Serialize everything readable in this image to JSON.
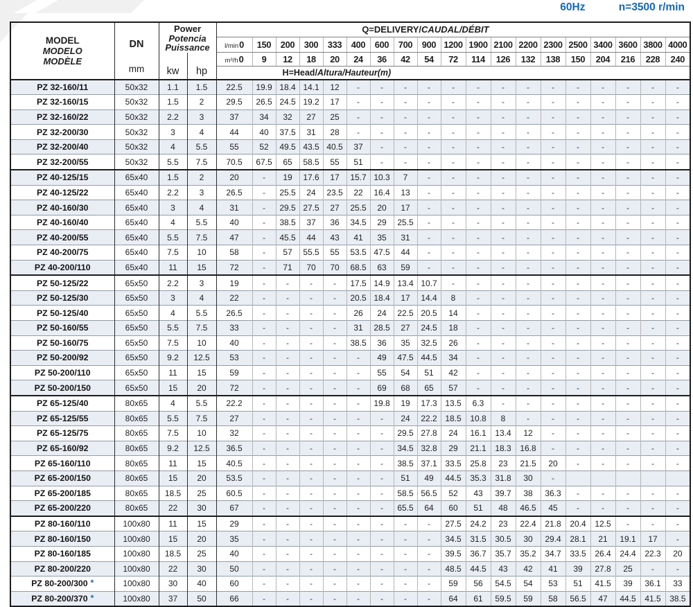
{
  "page": {
    "frequency": "60Hz",
    "speed": "n=3500 r/min",
    "colors": {
      "accent_blue": "#1268b8",
      "row_stripe": "#e9edf4"
    }
  },
  "table": {
    "header": {
      "model_lines": [
        "MODEL",
        "MODELO",
        "MODÈLE"
      ],
      "dn": "DN",
      "dn_unit": "mm",
      "power_lines": [
        "Power",
        "Potencia",
        "Puissance"
      ],
      "kw": "kw",
      "hp": "hp",
      "q_title_main": "Q=DELIVERY/",
      "q_title_italic": "CAUDAL/DÉBIT",
      "lmin_label": "l/min",
      "m3h_label": "m³/h",
      "lmin": [
        "0",
        "150",
        "200",
        "300",
        "333",
        "400",
        "600",
        "700",
        "900",
        "1200",
        "1900",
        "2100",
        "2200",
        "2300",
        "2500",
        "3400",
        "3600",
        "3800",
        "4000"
      ],
      "m3h": [
        "0",
        "9",
        "12",
        "18",
        "20",
        "24",
        "36",
        "42",
        "54",
        "72",
        "114",
        "126",
        "132",
        "138",
        "150",
        "204",
        "216",
        "228",
        "240"
      ],
      "head_title_main": "H=Head/",
      "head_title_italic": "Altura/Hauteur(m)"
    },
    "star_char": "*",
    "rows": [
      {
        "model": "PZ 32-160/11",
        "dn": "50x32",
        "kw": "1.1",
        "hp": "1.5",
        "heads": [
          "22.5",
          "19.9",
          "18.4",
          "14.1",
          "12",
          "-",
          "-",
          "-",
          "-",
          "-",
          "-",
          "-",
          "-",
          "-",
          "-",
          "-",
          "-",
          "-",
          "-"
        ]
      },
      {
        "model": "PZ 32-160/15",
        "dn": "50x32",
        "kw": "1.5",
        "hp": "2",
        "heads": [
          "29.5",
          "26.5",
          "24.5",
          "19.2",
          "17",
          "-",
          "-",
          "-",
          "-",
          "-",
          "-",
          "-",
          "-",
          "-",
          "-",
          "-",
          "-",
          "-",
          "-"
        ]
      },
      {
        "model": "PZ 32-160/22",
        "dn": "50x32",
        "kw": "2.2",
        "hp": "3",
        "heads": [
          "37",
          "34",
          "32",
          "27",
          "25",
          "-",
          "-",
          "-",
          "-",
          "-",
          "-",
          "-",
          "-",
          "-",
          "-",
          "-",
          "-",
          "-",
          "-"
        ]
      },
      {
        "model": "PZ 32-200/30",
        "dn": "50x32",
        "kw": "3",
        "hp": "4",
        "heads": [
          "44",
          "40",
          "37.5",
          "31",
          "28",
          "-",
          "-",
          "-",
          "-",
          "-",
          "-",
          "-",
          "-",
          "-",
          "-",
          "-",
          "-",
          "-",
          "-"
        ]
      },
      {
        "model": "PZ 32-200/40",
        "dn": "50x32",
        "kw": "4",
        "hp": "5.5",
        "heads": [
          "55",
          "52",
          "49.5",
          "43.5",
          "40.5",
          "37",
          "-",
          "-",
          "-",
          "-",
          "-",
          "-",
          "-",
          "-",
          "-",
          "-",
          "-",
          "-",
          "-"
        ]
      },
      {
        "model": "PZ 32-200/55",
        "dn": "50x32",
        "kw": "5.5",
        "hp": "7.5",
        "heads": [
          "70.5",
          "67.5",
          "65",
          "58.5",
          "55",
          "51",
          "-",
          "-",
          "-",
          "-",
          "-",
          "-",
          "-",
          "-",
          "-",
          "-",
          "-",
          "-",
          "-"
        ]
      },
      {
        "model": "PZ 40-125/15",
        "dn": "65x40",
        "kw": "1.5",
        "hp": "2",
        "heads": [
          "20",
          "-",
          "19",
          "17.6",
          "17",
          "15.7",
          "10.3",
          "7",
          "-",
          "-",
          "-",
          "-",
          "-",
          "-",
          "-",
          "-",
          "-",
          "-",
          "-"
        ]
      },
      {
        "model": "PZ 40-125/22",
        "dn": "65x40",
        "kw": "2.2",
        "hp": "3",
        "heads": [
          "26.5",
          "-",
          "25.5",
          "24",
          "23.5",
          "22",
          "16.4",
          "13",
          "-",
          "-",
          "-",
          "-",
          "-",
          "-",
          "-",
          "-",
          "-",
          "-",
          "-"
        ]
      },
      {
        "model": "PZ 40-160/30",
        "dn": "65x40",
        "kw": "3",
        "hp": "4",
        "heads": [
          "31",
          "-",
          "29.5",
          "27.5",
          "27",
          "25.5",
          "20",
          "17",
          "-",
          "-",
          "-",
          "-",
          "-",
          "-",
          "-",
          "-",
          "-",
          "-",
          "-"
        ]
      },
      {
        "model": "PZ 40-160/40",
        "dn": "65x40",
        "kw": "4",
        "hp": "5.5",
        "heads": [
          "40",
          "-",
          "38.5",
          "37",
          "36",
          "34.5",
          "29",
          "25.5",
          "-",
          "-",
          "-",
          "-",
          "-",
          "-",
          "-",
          "-",
          "-",
          "-",
          "-"
        ]
      },
      {
        "model": "PZ 40-200/55",
        "dn": "65x40",
        "kw": "5.5",
        "hp": "7.5",
        "heads": [
          "47",
          "-",
          "45.5",
          "44",
          "43",
          "41",
          "35",
          "31",
          "-",
          "-",
          "-",
          "-",
          "-",
          "-",
          "-",
          "-",
          "-",
          "-",
          "-"
        ]
      },
      {
        "model": "PZ 40-200/75",
        "dn": "65x40",
        "kw": "7.5",
        "hp": "10",
        "heads": [
          "58",
          "-",
          "57",
          "55.5",
          "55",
          "53.5",
          "47.5",
          "44",
          "-",
          "-",
          "-",
          "-",
          "-",
          "-",
          "-",
          "-",
          "-",
          "-",
          "-"
        ]
      },
      {
        "model": "PZ 40-200/110",
        "dn": "65x40",
        "kw": "11",
        "hp": "15",
        "heads": [
          "72",
          "-",
          "71",
          "70",
          "70",
          "68.5",
          "63",
          "59",
          "-",
          "-",
          "-",
          "-",
          "-",
          "-",
          "-",
          "-",
          "-",
          "-",
          "-"
        ]
      },
      {
        "model": "PZ 50-125/22",
        "dn": "65x50",
        "kw": "2.2",
        "hp": "3",
        "heads": [
          "19",
          "-",
          "-",
          "-",
          "-",
          "17.5",
          "14.9",
          "13.4",
          "10.7",
          "-",
          "-",
          "-",
          "-",
          "-",
          "-",
          "-",
          "-",
          "-",
          "-"
        ]
      },
      {
        "model": "PZ 50-125/30",
        "dn": "65x50",
        "kw": "3",
        "hp": "4",
        "heads": [
          "22",
          "-",
          "-",
          "-",
          "-",
          "20.5",
          "18.4",
          "17",
          "14.4",
          "8",
          "-",
          "-",
          "-",
          "-",
          "-",
          "-",
          "-",
          "-",
          "-"
        ]
      },
      {
        "model": "PZ 50-125/40",
        "dn": "65x50",
        "kw": "4",
        "hp": "5.5",
        "heads": [
          "26.5",
          "-",
          "-",
          "-",
          "-",
          "26",
          "24",
          "22.5",
          "20.5",
          "14",
          "-",
          "-",
          "-",
          "-",
          "-",
          "-",
          "-",
          "-",
          "-"
        ]
      },
      {
        "model": "PZ 50-160/55",
        "dn": "65x50",
        "kw": "5.5",
        "hp": "7.5",
        "heads": [
          "33",
          "-",
          "-",
          "-",
          "-",
          "31",
          "28.5",
          "27",
          "24.5",
          "18",
          "-",
          "-",
          "-",
          "-",
          "-",
          "-",
          "-",
          "-",
          "-"
        ]
      },
      {
        "model": "PZ 50-160/75",
        "dn": "65x50",
        "kw": "7.5",
        "hp": "10",
        "heads": [
          "40",
          "-",
          "-",
          "-",
          "-",
          "38.5",
          "36",
          "35",
          "32.5",
          "26",
          "-",
          "-",
          "-",
          "-",
          "-",
          "-",
          "-",
          "-",
          "-"
        ]
      },
      {
        "model": "PZ 50-200/92",
        "dn": "65x50",
        "kw": "9.2",
        "hp": "12.5",
        "heads": [
          "53",
          "-",
          "-",
          "-",
          "-",
          "-",
          "49",
          "47.5",
          "44.5",
          "34",
          "-",
          "-",
          "-",
          "-",
          "-",
          "-",
          "-",
          "-",
          "-"
        ]
      },
      {
        "model": "PZ 50-200/110",
        "dn": "65x50",
        "kw": "11",
        "hp": "15",
        "heads": [
          "59",
          "-",
          "-",
          "-",
          "-",
          "-",
          "55",
          "54",
          "51",
          "42",
          "-",
          "-",
          "-",
          "-",
          "-",
          "-",
          "-",
          "-",
          "-"
        ]
      },
      {
        "model": "PZ 50-200/150",
        "dn": "65x50",
        "kw": "15",
        "hp": "20",
        "heads": [
          "72",
          "-",
          "-",
          "-",
          "-",
          "-",
          "69",
          "68",
          "65",
          "57",
          "-",
          "-",
          "-",
          "-",
          "-",
          "-",
          "-",
          "-",
          "-"
        ]
      },
      {
        "model": "PZ 65-125/40",
        "dn": "80x65",
        "kw": "4",
        "hp": "5.5",
        "heads": [
          "22.2",
          "-",
          "-",
          "-",
          "-",
          "-",
          "19.8",
          "19",
          "17.3",
          "13.5",
          "6.3",
          "-",
          "-",
          "-",
          "-",
          "-",
          "-",
          "-",
          "-"
        ]
      },
      {
        "model": "PZ 65-125/55",
        "dn": "80x65",
        "kw": "5.5",
        "hp": "7.5",
        "heads": [
          "27",
          "-",
          "-",
          "-",
          "-",
          "-",
          "-",
          "24",
          "22.2",
          "18.5",
          "10.8",
          "8",
          "-",
          "-",
          "-",
          "-",
          "-",
          "-",
          "-"
        ]
      },
      {
        "model": "PZ 65-125/75",
        "dn": "80x65",
        "kw": "7.5",
        "hp": "10",
        "heads": [
          "32",
          "-",
          "-",
          "-",
          "-",
          "-",
          "-",
          "29.5",
          "27.8",
          "24",
          "16.1",
          "13.4",
          "12",
          "-",
          "-",
          "-",
          "-",
          "-",
          "-"
        ]
      },
      {
        "model": "PZ 65-160/92",
        "dn": "80x65",
        "kw": "9.2",
        "hp": "12.5",
        "heads": [
          "36.5",
          "-",
          "-",
          "-",
          "-",
          "-",
          "-",
          "34.5",
          "32.8",
          "29",
          "21.1",
          "18.3",
          "16.8",
          "-",
          "-",
          "-",
          "-",
          "-",
          "-"
        ]
      },
      {
        "model": "PZ 65-160/110",
        "dn": "80x65",
        "kw": "11",
        "hp": "15",
        "heads": [
          "40.5",
          "-",
          "-",
          "-",
          "-",
          "-",
          "-",
          "38.5",
          "37.1",
          "33.5",
          "25.8",
          "23",
          "21.5",
          "20",
          "-",
          "-",
          "-",
          "-",
          "-"
        ]
      },
      {
        "model": "PZ 65-200/150",
        "dn": "80x65",
        "kw": "15",
        "hp": "20",
        "heads": [
          "53.5",
          "-",
          "-",
          "-",
          "-",
          "-",
          "-",
          "51",
          "49",
          "44.5",
          "35.3",
          "31.8",
          "30",
          "-",
          "",
          "",
          "",
          "",
          ""
        ]
      },
      {
        "model": "PZ 65-200/185",
        "dn": "80x65",
        "kw": "18.5",
        "hp": "25",
        "heads": [
          "60.5",
          "-",
          "-",
          "-",
          "-",
          "-",
          "-",
          "58.5",
          "56.5",
          "52",
          "43",
          "39.7",
          "38",
          "36.3",
          "-",
          "-",
          "-",
          "-",
          "-"
        ]
      },
      {
        "model": "PZ 65-200/220",
        "dn": "80x65",
        "kw": "22",
        "hp": "30",
        "heads": [
          "67",
          "-",
          "-",
          "-",
          "-",
          "-",
          "-",
          "65.5",
          "64",
          "60",
          "51",
          "48",
          "46.5",
          "45",
          "-",
          "-",
          "-",
          "-",
          "-"
        ]
      },
      {
        "model": "PZ 80-160/110",
        "dn": "100x80",
        "kw": "11",
        "hp": "15",
        "heads": [
          "29",
          "-",
          "-",
          "-",
          "-",
          "-",
          "-",
          "-",
          "-",
          "27.5",
          "24.2",
          "23",
          "22.4",
          "21.8",
          "20.4",
          "12.5",
          "-",
          "-",
          "-"
        ]
      },
      {
        "model": "PZ 80-160/150",
        "dn": "100x80",
        "kw": "15",
        "hp": "20",
        "heads": [
          "35",
          "-",
          "-",
          "-",
          "-",
          "-",
          "-",
          "-",
          "-",
          "34.5",
          "31.5",
          "30.5",
          "30",
          "29.4",
          "28.1",
          "21",
          "19.1",
          "17",
          "-"
        ]
      },
      {
        "model": "PZ 80-160/185",
        "dn": "100x80",
        "kw": "18.5",
        "hp": "25",
        "heads": [
          "40",
          "-",
          "-",
          "-",
          "-",
          "-",
          "-",
          "-",
          "-",
          "39.5",
          "36.7",
          "35.7",
          "35.2",
          "34.7",
          "33.5",
          "26.4",
          "24.4",
          "22.3",
          "20"
        ]
      },
      {
        "model": "PZ 80-200/220",
        "dn": "100x80",
        "kw": "22",
        "hp": "30",
        "heads": [
          "50",
          "-",
          "-",
          "-",
          "-",
          "-",
          "-",
          "-",
          "-",
          "48.5",
          "44.5",
          "43",
          "42",
          "41",
          "39",
          "27.8",
          "25",
          "-",
          "-"
        ]
      },
      {
        "model": "PZ 80-200/300",
        "star": true,
        "dn": "100x80",
        "kw": "30",
        "hp": "40",
        "heads": [
          "60",
          "-",
          "-",
          "-",
          "-",
          "-",
          "-",
          "-",
          "-",
          "59",
          "56",
          "54.5",
          "54",
          "53",
          "51",
          "41.5",
          "39",
          "36.1",
          "33"
        ]
      },
      {
        "model": "PZ 80-200/370",
        "star": true,
        "dn": "100x80",
        "kw": "37",
        "hp": "50",
        "heads": [
          "66",
          "-",
          "-",
          "-",
          "-",
          "-",
          "-",
          "-",
          "-",
          "64",
          "61",
          "59.5",
          "59",
          "58",
          "56.5",
          "47",
          "44.5",
          "41.5",
          "38.5"
        ]
      }
    ]
  }
}
